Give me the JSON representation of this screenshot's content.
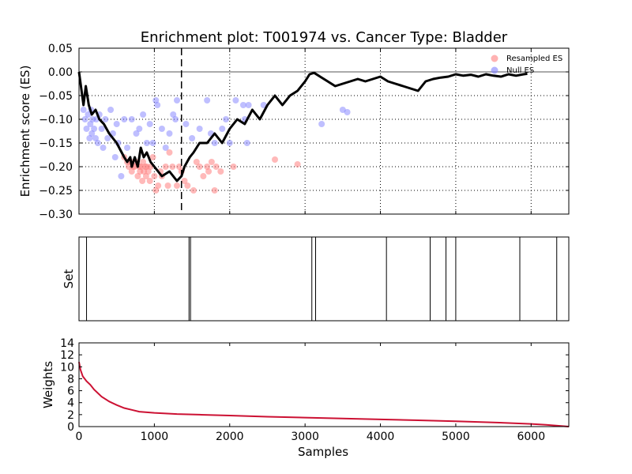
{
  "chart_data": [
    {
      "type": "line",
      "title": "Enrichment plot: T001974 vs. Cancer Type: Bladder",
      "xlabel": "",
      "ylabel": "Enrichment score (ES)",
      "xlim": [
        0,
        6500
      ],
      "ylim": [
        -0.3,
        0.05
      ],
      "yticks": [
        -0.3,
        -0.25,
        -0.2,
        -0.15,
        -0.1,
        -0.05,
        0.0,
        0.05
      ],
      "ytick_labels": [
        "−0.30",
        "−0.25",
        "−0.20",
        "−0.15",
        "−0.10",
        "−0.05",
        "0.00",
        "0.05"
      ],
      "grid": true,
      "legend": "top-right",
      "legend_entries": [
        {
          "label": "Resampled ES",
          "color": "#ff7f7f"
        },
        {
          "label": "Null ES",
          "color": "#8080ff"
        }
      ],
      "vline_dashed_x": 1360,
      "zero_line": true,
      "es_curve": {
        "color": "#000000",
        "x": [
          0,
          60,
          90,
          130,
          170,
          220,
          270,
          330,
          400,
          500,
          600,
          640,
          680,
          700,
          740,
          780,
          820,
          860,
          900,
          950,
          1000,
          1100,
          1200,
          1300,
          1360,
          1400,
          1470,
          1520,
          1600,
          1700,
          1800,
          1900,
          2000,
          2100,
          2200,
          2300,
          2400,
          2500,
          2600,
          2700,
          2800,
          2900,
          3000,
          3060,
          3120,
          3200,
          3300,
          3400,
          3500,
          3600,
          3700,
          3800,
          3900,
          4000,
          4100,
          4200,
          4300,
          4400,
          4500,
          4600,
          4700,
          4800,
          4900,
          5000,
          5100,
          5200,
          5300,
          5400,
          5500,
          5600,
          5700,
          5800,
          5900,
          5950
        ],
        "y": [
          0.0,
          -0.07,
          -0.03,
          -0.07,
          -0.09,
          -0.08,
          -0.1,
          -0.11,
          -0.13,
          -0.15,
          -0.18,
          -0.19,
          -0.18,
          -0.2,
          -0.18,
          -0.2,
          -0.16,
          -0.18,
          -0.17,
          -0.19,
          -0.2,
          -0.22,
          -0.21,
          -0.23,
          -0.22,
          -0.2,
          -0.18,
          -0.17,
          -0.15,
          -0.15,
          -0.13,
          -0.15,
          -0.12,
          -0.1,
          -0.11,
          -0.08,
          -0.1,
          -0.07,
          -0.05,
          -0.07,
          -0.05,
          -0.04,
          -0.02,
          -0.005,
          -0.002,
          -0.01,
          -0.02,
          -0.03,
          -0.025,
          -0.02,
          -0.015,
          -0.02,
          -0.015,
          -0.01,
          -0.02,
          -0.025,
          -0.03,
          -0.035,
          -0.04,
          -0.02,
          -0.015,
          -0.012,
          -0.01,
          -0.005,
          -0.008,
          -0.006,
          -0.01,
          -0.005,
          -0.008,
          -0.01,
          -0.005,
          -0.008,
          -0.005,
          -0.004
        ]
      },
      "null_es": {
        "color": "#8080ff",
        "x": [
          60,
          80,
          100,
          120,
          140,
          150,
          160,
          170,
          180,
          200,
          220,
          230,
          250,
          270,
          300,
          320,
          350,
          380,
          420,
          450,
          480,
          500,
          520,
          560,
          600,
          640,
          700,
          760,
          800,
          850,
          900,
          940,
          980,
          1020,
          1040,
          1100,
          1150,
          1200,
          1250,
          1280,
          1300,
          1420,
          1500,
          1600,
          1700,
          1750,
          1800,
          1900,
          1950,
          2000,
          2080,
          2180,
          2200,
          2230,
          2250,
          2450,
          3220,
          3500,
          3560
        ],
        "y": [
          -0.08,
          -0.1,
          -0.12,
          -0.09,
          -0.14,
          -0.11,
          -0.08,
          -0.13,
          -0.1,
          -0.12,
          -0.14,
          -0.1,
          -0.15,
          -0.09,
          -0.12,
          -0.16,
          -0.1,
          -0.14,
          -0.08,
          -0.13,
          -0.18,
          -0.11,
          -0.15,
          -0.22,
          -0.1,
          -0.16,
          -0.1,
          -0.13,
          -0.12,
          -0.09,
          -0.15,
          -0.11,
          -0.15,
          -0.06,
          -0.07,
          -0.12,
          -0.16,
          -0.13,
          -0.09,
          -0.1,
          -0.06,
          -0.11,
          -0.14,
          -0.12,
          -0.06,
          -0.13,
          -0.15,
          -0.12,
          -0.1,
          -0.15,
          -0.06,
          -0.07,
          -0.1,
          -0.15,
          -0.07,
          -0.07,
          -0.11,
          -0.08,
          -0.085
        ]
      },
      "resampled_es": {
        "color": "#ff7f7f",
        "x": [
          600,
          640,
          660,
          690,
          700,
          720,
          740,
          760,
          780,
          800,
          810,
          820,
          840,
          850,
          860,
          880,
          890,
          900,
          920,
          940,
          950,
          980,
          1000,
          1020,
          1050,
          1080,
          1100,
          1150,
          1180,
          1200,
          1240,
          1300,
          1330,
          1360,
          1400,
          1440,
          1520,
          1560,
          1600,
          1650,
          1700,
          1720,
          1760,
          1800,
          1820,
          1880,
          2050,
          2600,
          2900
        ],
        "y": [
          -0.18,
          -0.19,
          -0.2,
          -0.19,
          -0.21,
          -0.2,
          -0.2,
          -0.19,
          -0.22,
          -0.2,
          -0.21,
          -0.2,
          -0.23,
          -0.19,
          -0.21,
          -0.2,
          -0.22,
          -0.2,
          -0.21,
          -0.23,
          -0.2,
          -0.18,
          -0.22,
          -0.25,
          -0.24,
          -0.21,
          -0.22,
          -0.2,
          -0.24,
          -0.17,
          -0.2,
          -0.24,
          -0.2,
          -0.21,
          -0.23,
          -0.24,
          -0.25,
          -0.19,
          -0.2,
          -0.22,
          -0.2,
          -0.21,
          -0.19,
          -0.25,
          -0.2,
          -0.21,
          -0.2,
          -0.185,
          -0.195
        ]
      }
    },
    {
      "type": "event",
      "ylabel": "Set",
      "xlim": [
        0,
        6500
      ],
      "hits": [
        100,
        1460,
        1480,
        3090,
        3140,
        4080,
        4660,
        4870,
        5000,
        5850,
        6340
      ]
    },
    {
      "type": "area",
      "xlabel": "Samples",
      "ylabel": "Weights",
      "xlim": [
        0,
        6500
      ],
      "ylim": [
        0,
        14
      ],
      "xticks": [
        0,
        1000,
        2000,
        3000,
        4000,
        5000,
        6000
      ],
      "yticks": [
        0,
        2,
        4,
        6,
        8,
        10,
        12,
        14
      ],
      "color": "#cc1133",
      "x": [
        0,
        20,
        50,
        100,
        150,
        200,
        300,
        400,
        500,
        600,
        700,
        800,
        1000,
        1300,
        1600,
        2000,
        2500,
        3000,
        3500,
        4000,
        4500,
        5000,
        5500,
        6000,
        6200,
        6400,
        6500
      ],
      "y": [
        10.8,
        9.5,
        8.4,
        7.6,
        7.0,
        6.2,
        5.0,
        4.2,
        3.6,
        3.1,
        2.8,
        2.5,
        2.3,
        2.1,
        2.0,
        1.85,
        1.65,
        1.5,
        1.35,
        1.2,
        1.05,
        0.9,
        0.7,
        0.45,
        0.3,
        0.1,
        0.0
      ]
    }
  ]
}
